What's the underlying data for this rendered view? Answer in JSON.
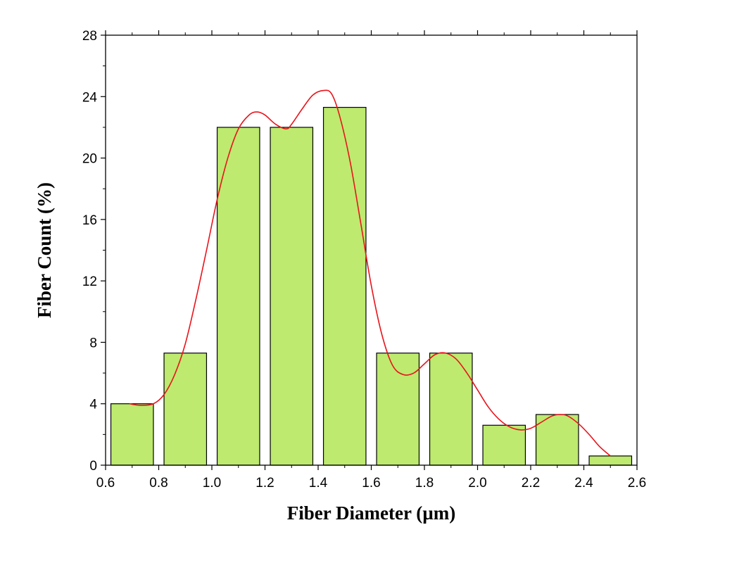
{
  "chart_data": {
    "type": "bar",
    "xlabel": "Fiber Diameter (µm)",
    "ylabel": "Fiber Count (%)",
    "xlim": [
      0.6,
      2.6
    ],
    "ylim": [
      0,
      28
    ],
    "xticks": [
      "0.6",
      "0.8",
      "1.0",
      "1.2",
      "1.4",
      "1.6",
      "1.8",
      "2.0",
      "2.2",
      "2.4",
      "2.6"
    ],
    "yticks": [
      "0",
      "4",
      "8",
      "12",
      "16",
      "20",
      "24",
      "28"
    ],
    "bins": [
      {
        "center": 0.7,
        "value": 4.0
      },
      {
        "center": 0.9,
        "value": 7.3
      },
      {
        "center": 1.1,
        "value": 22.0
      },
      {
        "center": 1.3,
        "value": 22.0
      },
      {
        "center": 1.5,
        "value": 23.3
      },
      {
        "center": 1.7,
        "value": 7.3
      },
      {
        "center": 1.9,
        "value": 7.3
      },
      {
        "center": 2.1,
        "value": 2.6
      },
      {
        "center": 2.3,
        "value": 3.3
      },
      {
        "center": 2.5,
        "value": 0.6
      }
    ],
    "bin_width": 0.2,
    "fit_curve": {
      "x": [
        0.69,
        0.73,
        0.78,
        0.82,
        0.86,
        0.9,
        0.94,
        0.98,
        1.02,
        1.06,
        1.1,
        1.14,
        1.17,
        1.2,
        1.24,
        1.28,
        1.3,
        1.34,
        1.38,
        1.42,
        1.45,
        1.48,
        1.52,
        1.56,
        1.6,
        1.64,
        1.68,
        1.72,
        1.76,
        1.8,
        1.84,
        1.88,
        1.92,
        1.96,
        2.0,
        2.04,
        2.08,
        2.12,
        2.16,
        2.2,
        2.24,
        2.28,
        2.31,
        2.34,
        2.38,
        2.42,
        2.46,
        2.5
      ],
      "y": [
        4.0,
        3.9,
        4.0,
        4.6,
        5.9,
        7.9,
        10.8,
        14.0,
        17.3,
        20.0,
        21.9,
        22.8,
        23.0,
        22.8,
        22.2,
        21.9,
        22.2,
        23.2,
        24.1,
        24.4,
        24.2,
        22.8,
        19.8,
        15.8,
        11.7,
        8.5,
        6.5,
        5.9,
        6.0,
        6.6,
        7.2,
        7.3,
        6.9,
        6.0,
        4.9,
        3.8,
        3.0,
        2.5,
        2.3,
        2.4,
        2.8,
        3.2,
        3.3,
        3.2,
        2.7,
        2.0,
        1.2,
        0.6
      ],
      "color": "#e8141c"
    },
    "bar_color": "#bdea6f",
    "bar_edge_color": "#000000",
    "grid": false
  }
}
